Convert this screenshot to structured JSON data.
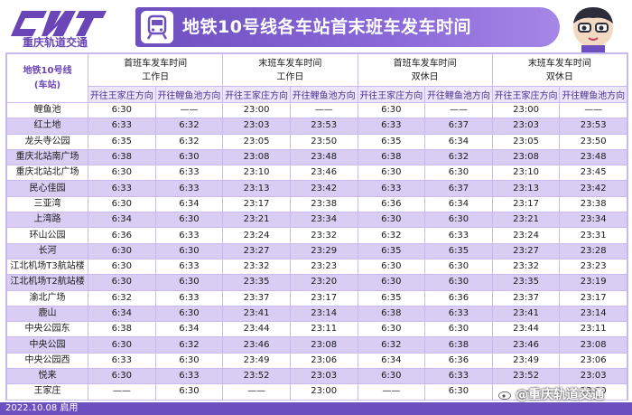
{
  "header": {
    "logo_text": "重庆轨道交通",
    "title": "地铁10号线各车站首末班车发车时间",
    "icons": [
      "cqrt-logo-icon",
      "metro-train-icon",
      "mascot-icon"
    ]
  },
  "table": {
    "corner_label_1": "地铁10号线",
    "corner_label_2": "(车站)",
    "groups": [
      {
        "line1": "首班车发车时间",
        "line2": "工作日"
      },
      {
        "line1": "末班车发车时间",
        "line2": "工作日"
      },
      {
        "line1": "首班车发车时间",
        "line2": "双休日"
      },
      {
        "line1": "末班车发车时间",
        "line2": "双休日"
      }
    ],
    "directions": [
      "开往王家庄方向",
      "开往鲤鱼池方向",
      "开往王家庄方向",
      "开往鲤鱼池方向",
      "开往王家庄方向",
      "开往鲤鱼池方向",
      "开往王家庄方向",
      "开往鲤鱼池方向"
    ],
    "rows": [
      [
        "鲤鱼池",
        "6:30",
        "——",
        "23:00",
        "——",
        "6:30",
        "——",
        "23:00",
        "——"
      ],
      [
        "红土地",
        "6:33",
        "6:32",
        "23:03",
        "23:53",
        "6:33",
        "6:37",
        "23:03",
        "23:53"
      ],
      [
        "龙头寺公园",
        "6:35",
        "6:32",
        "23:05",
        "23:50",
        "6:35",
        "6:34",
        "23:05",
        "23:50"
      ],
      [
        "重庆北站南广场",
        "6:38",
        "6:30",
        "23:08",
        "23:48",
        "6:38",
        "6:32",
        "23:08",
        "23:48"
      ],
      [
        "重庆北站北广场",
        "6:30",
        "6:33",
        "23:10",
        "23:46",
        "6:30",
        "6:30",
        "23:10",
        "23:45"
      ],
      [
        "民心佳园",
        "6:33",
        "6:33",
        "23:13",
        "23:42",
        "6:33",
        "6:37",
        "23:13",
        "23:42"
      ],
      [
        "三亚湾",
        "6:30",
        "6:34",
        "23:17",
        "23:38",
        "6:36",
        "6:34",
        "23:17",
        "23:38"
      ],
      [
        "上湾路",
        "6:34",
        "6:30",
        "23:21",
        "23:34",
        "6:30",
        "6:30",
        "23:21",
        "23:34"
      ],
      [
        "环山公园",
        "6:36",
        "6:33",
        "23:24",
        "23:32",
        "6:32",
        "6:33",
        "23:24",
        "23:31"
      ],
      [
        "长河",
        "6:30",
        "6:30",
        "23:27",
        "23:29",
        "6:35",
        "6:35",
        "23:27",
        "23:28"
      ],
      [
        "江北机场T3航站楼",
        "6:30",
        "6:33",
        "23:32",
        "23:23",
        "6:30",
        "6:30",
        "23:32",
        "23:23"
      ],
      [
        "江北机场T2航站楼",
        "6:30",
        "6:30",
        "23:35",
        "23:20",
        "6:30",
        "6:30",
        "23:35",
        "23:19"
      ],
      [
        "渝北广场",
        "6:32",
        "6:33",
        "23:37",
        "23:17",
        "6:35",
        "6:36",
        "23:37",
        "23:17"
      ],
      [
        "鹿山",
        "6:34",
        "6:30",
        "23:41",
        "23:14",
        "6:38",
        "6:33",
        "23:41",
        "23:14"
      ],
      [
        "中央公园东",
        "6:38",
        "6:34",
        "23:44",
        "23:11",
        "6:30",
        "6:30",
        "23:44",
        "23:11"
      ],
      [
        "中央公园",
        "6:30",
        "6:32",
        "23:46",
        "23:08",
        "6:32",
        "6:38",
        "23:46",
        "23:08"
      ],
      [
        "中央公园西",
        "6:33",
        "6:30",
        "23:49",
        "23:06",
        "6:34",
        "6:36",
        "23:49",
        "23:06"
      ],
      [
        "悦来",
        "6:30",
        "6:33",
        "23:52",
        "23:03",
        "6:30",
        "6:33",
        "23:52",
        "23:03"
      ],
      [
        "王家庄",
        "——",
        "6:30",
        "——",
        "23:00",
        "——",
        "6:30",
        "——",
        "23:00"
      ]
    ]
  },
  "footer": {
    "date_note": "2022.10.08 启用",
    "watermark": "@重庆轨道交通"
  },
  "colors": {
    "brand_purple": "#6e4fc0",
    "row_stripe": "#d9cdf4",
    "border": "#c9b9ee"
  }
}
